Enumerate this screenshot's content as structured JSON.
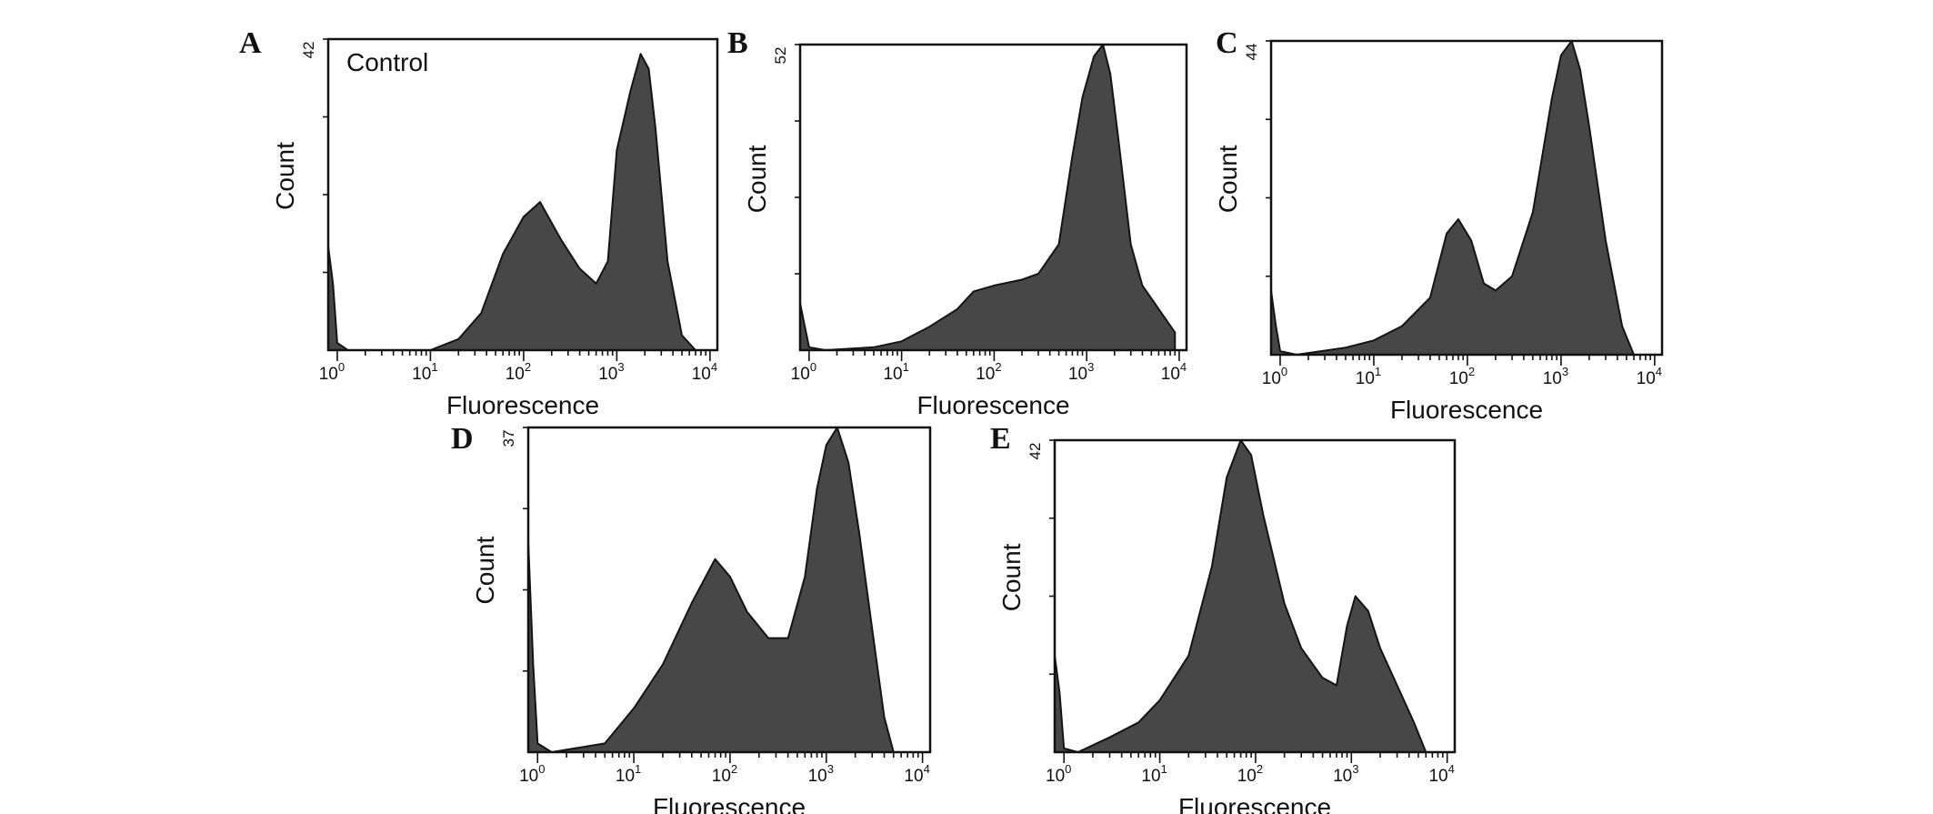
{
  "colors": {
    "fill": "#474747",
    "outline": "#141414",
    "frame": "#111111"
  },
  "chart_data": [
    {
      "type": "area",
      "panel": "A",
      "annotation": "Control",
      "xlabel": "Fluorescence",
      "ylabel": "Count",
      "ymax_label": "42",
      "xscale": "log",
      "xlim": [
        0.8,
        12000
      ],
      "ylim": [
        0,
        42
      ],
      "xticks": [
        {
          "base": "10",
          "exp": "0"
        },
        {
          "base": "10",
          "exp": "1"
        },
        {
          "base": "10",
          "exp": "2"
        },
        {
          "base": "10",
          "exp": "3"
        },
        {
          "base": "10",
          "exp": "4"
        }
      ],
      "x": [
        0.8,
        0.9,
        1.0,
        1.3,
        10,
        20,
        35,
        60,
        100,
        150,
        250,
        400,
        600,
        800,
        1000,
        1400,
        1800,
        2200,
        2600,
        3500,
        5000,
        7000
      ],
      "y": [
        14,
        9,
        1,
        0,
        0,
        1.5,
        5,
        13,
        18,
        20,
        15,
        11,
        9,
        12,
        27,
        35,
        40,
        38,
        30,
        12,
        2,
        0
      ]
    },
    {
      "type": "area",
      "panel": "B",
      "xlabel": "Fluorescence",
      "ylabel": "Count",
      "ymax_label": "52",
      "xscale": "log",
      "xlim": [
        0.8,
        12000
      ],
      "ylim": [
        0,
        52
      ],
      "xticks": [
        {
          "base": "10",
          "exp": "0"
        },
        {
          "base": "10",
          "exp": "1"
        },
        {
          "base": "10",
          "exp": "2"
        },
        {
          "base": "10",
          "exp": "3"
        },
        {
          "base": "10",
          "exp": "4"
        }
      ],
      "x": [
        0.8,
        0.9,
        1.0,
        1.5,
        5,
        10,
        20,
        40,
        60,
        100,
        200,
        300,
        500,
        700,
        900,
        1200,
        1500,
        1800,
        2200,
        3000,
        4000,
        6000,
        9000
      ],
      "y": [
        8,
        4,
        0.5,
        0,
        0.5,
        1.5,
        4,
        7,
        10,
        11,
        12,
        13,
        18,
        33,
        43,
        50,
        52,
        47,
        36,
        18,
        11,
        7,
        3
      ]
    },
    {
      "type": "area",
      "panel": "C",
      "xlabel": "Fluorescence",
      "ylabel": "Count",
      "ymax_label": "44",
      "xscale": "log",
      "xlim": [
        0.8,
        12000
      ],
      "ylim": [
        0,
        44
      ],
      "xticks": [
        {
          "base": "10",
          "exp": "0"
        },
        {
          "base": "10",
          "exp": "1"
        },
        {
          "base": "10",
          "exp": "2"
        },
        {
          "base": "10",
          "exp": "3"
        },
        {
          "base": "10",
          "exp": "4"
        }
      ],
      "x": [
        0.8,
        0.9,
        1.0,
        1.5,
        5,
        10,
        20,
        40,
        60,
        80,
        110,
        150,
        200,
        300,
        500,
        800,
        1000,
        1300,
        1600,
        2000,
        3000,
        4500,
        6000
      ],
      "y": [
        9,
        4,
        0.5,
        0,
        1,
        2,
        4,
        8,
        17,
        19,
        16,
        10,
        9,
        11,
        20,
        36,
        42,
        44,
        40,
        32,
        16,
        4,
        0
      ]
    },
    {
      "type": "area",
      "panel": "D",
      "xlabel": "Fluorescence",
      "ylabel": "Count",
      "ymax_label": "37",
      "xscale": "log",
      "xlim": [
        0.8,
        12000
      ],
      "ylim": [
        0,
        37
      ],
      "xticks": [
        {
          "base": "10",
          "exp": "0"
        },
        {
          "base": "10",
          "exp": "1"
        },
        {
          "base": "10",
          "exp": "2"
        },
        {
          "base": "10",
          "exp": "3"
        },
        {
          "base": "10",
          "exp": "4"
        }
      ],
      "x": [
        0.8,
        0.9,
        1.0,
        1.4,
        5,
        10,
        20,
        40,
        70,
        100,
        150,
        250,
        400,
        600,
        800,
        1000,
        1300,
        1700,
        2200,
        3000,
        4000,
        5000
      ],
      "y": [
        24,
        10,
        1,
        0,
        1,
        5,
        10,
        17,
        22,
        20,
        16,
        13,
        13,
        20,
        30,
        35,
        37,
        33,
        25,
        14,
        4,
        0
      ]
    },
    {
      "type": "area",
      "panel": "E",
      "xlabel": "Fluorescence",
      "ylabel": "Count",
      "ymax_label": "42",
      "xscale": "log",
      "xlim": [
        0.8,
        12000
      ],
      "ylim": [
        0,
        42
      ],
      "xticks": [
        {
          "base": "10",
          "exp": "0"
        },
        {
          "base": "10",
          "exp": "1"
        },
        {
          "base": "10",
          "exp": "2"
        },
        {
          "base": "10",
          "exp": "3"
        },
        {
          "base": "10",
          "exp": "4"
        }
      ],
      "x": [
        0.8,
        0.9,
        1.0,
        1.4,
        3,
        6,
        10,
        20,
        35,
        50,
        70,
        90,
        120,
        200,
        300,
        500,
        700,
        900,
        1100,
        1500,
        2000,
        3000,
        4500,
        6000
      ],
      "y": [
        13,
        8,
        0.5,
        0,
        2,
        4,
        7,
        13,
        25,
        37,
        42,
        40,
        32,
        20,
        14,
        10,
        9,
        17,
        21,
        19,
        14,
        9,
        4,
        0
      ]
    }
  ]
}
